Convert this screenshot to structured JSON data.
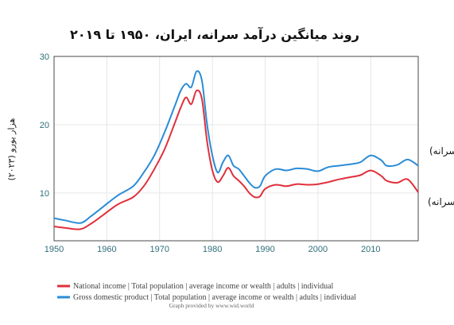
{
  "chart_data": {
    "type": "line",
    "title": "روند میانگین درآمد سرانه، ایران، ۱۹۵۰ تا ۲۰۱۹",
    "ylabel": "هزار یورو (۲۰۲۳)",
    "xlabel": "",
    "xlim": [
      1950,
      2019
    ],
    "ylim": [
      3,
      30
    ],
    "x_ticks": [
      1950,
      1960,
      1970,
      1980,
      1990,
      2000,
      2010
    ],
    "y_ticks": [
      10,
      20,
      30
    ],
    "grid": true,
    "legend_position": "bottom-left",
    "credit": "Graph provided by www.wid.world",
    "series": [
      {
        "name": "Gross domestic product | Total population | average income or wealth | adults | individual",
        "color": "#2b8cd6",
        "annotation": "محصول ناخالص داخلی (سرانه)",
        "points": [
          [
            1950,
            6.3
          ],
          [
            1952,
            6.0
          ],
          [
            1955,
            5.6
          ],
          [
            1957,
            6.6
          ],
          [
            1959,
            7.8
          ],
          [
            1962,
            9.6
          ],
          [
            1965,
            11.0
          ],
          [
            1967,
            13.0
          ],
          [
            1969,
            15.5
          ],
          [
            1971,
            19.0
          ],
          [
            1973,
            23.0
          ],
          [
            1974,
            25.0
          ],
          [
            1975,
            26.0
          ],
          [
            1976,
            25.5
          ],
          [
            1977,
            27.8
          ],
          [
            1978,
            26.5
          ],
          [
            1979,
            20.0
          ],
          [
            1980,
            15.5
          ],
          [
            1981,
            13.0
          ],
          [
            1982,
            14.5
          ],
          [
            1983,
            15.5
          ],
          [
            1984,
            14.0
          ],
          [
            1985,
            13.5
          ],
          [
            1986,
            12.5
          ],
          [
            1987,
            11.5
          ],
          [
            1988,
            10.8
          ],
          [
            1989,
            11.0
          ],
          [
            1990,
            12.5
          ],
          [
            1992,
            13.5
          ],
          [
            1994,
            13.3
          ],
          [
            1996,
            13.6
          ],
          [
            1998,
            13.5
          ],
          [
            2000,
            13.2
          ],
          [
            2002,
            13.8
          ],
          [
            2004,
            14.0
          ],
          [
            2006,
            14.2
          ],
          [
            2008,
            14.5
          ],
          [
            2010,
            15.5
          ],
          [
            2012,
            14.8
          ],
          [
            2013,
            14.0
          ],
          [
            2015,
            14.1
          ],
          [
            2017,
            14.9
          ],
          [
            2019,
            14.0
          ]
        ]
      },
      {
        "name": "National income | Total population | average income or wealth | adults | individual",
        "color": "#e0303c",
        "annotation": "درآمد ملی (سرانه)",
        "points": [
          [
            1950,
            5.1
          ],
          [
            1952,
            4.9
          ],
          [
            1955,
            4.7
          ],
          [
            1957,
            5.5
          ],
          [
            1959,
            6.6
          ],
          [
            1962,
            8.3
          ],
          [
            1965,
            9.4
          ],
          [
            1967,
            11.0
          ],
          [
            1969,
            13.5
          ],
          [
            1971,
            16.5
          ],
          [
            1973,
            20.5
          ],
          [
            1974,
            22.5
          ],
          [
            1975,
            24.0
          ],
          [
            1976,
            23.0
          ],
          [
            1977,
            25.0
          ],
          [
            1978,
            23.8
          ],
          [
            1979,
            17.5
          ],
          [
            1980,
            13.3
          ],
          [
            1981,
            11.6
          ],
          [
            1982,
            12.5
          ],
          [
            1983,
            13.7
          ],
          [
            1984,
            12.5
          ],
          [
            1985,
            11.8
          ],
          [
            1986,
            11.0
          ],
          [
            1987,
            10.0
          ],
          [
            1988,
            9.4
          ],
          [
            1989,
            9.5
          ],
          [
            1990,
            10.6
          ],
          [
            1992,
            11.2
          ],
          [
            1994,
            11.0
          ],
          [
            1996,
            11.3
          ],
          [
            1998,
            11.2
          ],
          [
            2000,
            11.3
          ],
          [
            2002,
            11.6
          ],
          [
            2004,
            12.0
          ],
          [
            2006,
            12.3
          ],
          [
            2008,
            12.6
          ],
          [
            2010,
            13.3
          ],
          [
            2012,
            12.5
          ],
          [
            2013,
            11.8
          ],
          [
            2015,
            11.5
          ],
          [
            2017,
            12.0
          ],
          [
            2019,
            10.1
          ]
        ]
      }
    ]
  }
}
